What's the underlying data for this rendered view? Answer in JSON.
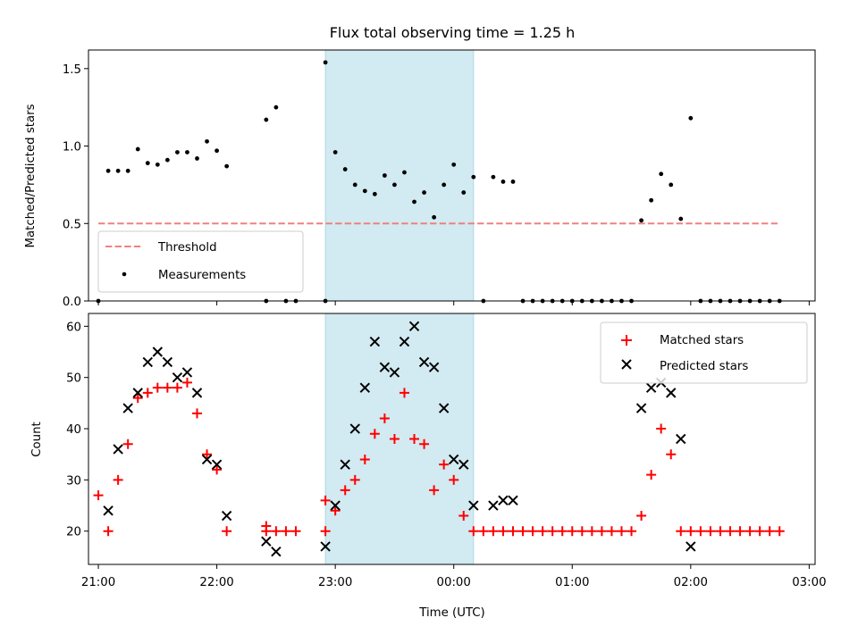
{
  "chart_data": [
    {
      "type": "scatter",
      "title": "Flux total observing time = 1.25 h",
      "xlabel": "",
      "ylabel": "Matched/Predicted stars",
      "xlim": [
        "20:55",
        "03:03"
      ],
      "ylim": [
        0,
        1.62
      ],
      "yticks": [
        0.0,
        0.5,
        1.0,
        1.5
      ],
      "ytick_labels": [
        "0.0",
        "0.5",
        "1.0",
        "1.5"
      ],
      "x_tick_labels": [
        "21:00",
        "22:00",
        "23:00",
        "00:00",
        "01:00",
        "02:00",
        "03:00"
      ],
      "x_tick_labels_visible": false,
      "shaded_region": {
        "from": "22:55",
        "to": "00:10",
        "color": "#add8e6"
      },
      "legend": {
        "position": "lower-left",
        "entries": [
          "Threshold",
          "Measurements"
        ]
      },
      "series": [
        {
          "name": "Threshold",
          "kind": "dashed-line",
          "color": "#f08080",
          "points": [
            [
              "21:00",
              0.5
            ],
            [
              "02:45",
              0.5
            ]
          ]
        },
        {
          "name": "Measurements",
          "kind": "dot",
          "color": "#000000",
          "points": [
            [
              "21:00",
              0.0
            ],
            [
              "21:05",
              0.84
            ],
            [
              "21:10",
              0.84
            ],
            [
              "21:15",
              0.84
            ],
            [
              "21:20",
              0.98
            ],
            [
              "21:25",
              0.89
            ],
            [
              "21:30",
              0.88
            ],
            [
              "21:35",
              0.91
            ],
            [
              "21:40",
              0.96
            ],
            [
              "21:45",
              0.96
            ],
            [
              "21:50",
              0.92
            ],
            [
              "21:55",
              1.03
            ],
            [
              "22:00",
              0.97
            ],
            [
              "22:05",
              0.87
            ],
            [
              "22:25",
              0.0
            ],
            [
              "22:25",
              1.17
            ],
            [
              "22:30",
              1.25
            ],
            [
              "22:35",
              0.0
            ],
            [
              "22:40",
              0.0
            ],
            [
              "22:55",
              0.0
            ],
            [
              "22:55",
              1.54
            ],
            [
              "23:00",
              0.96
            ],
            [
              "23:05",
              0.85
            ],
            [
              "23:10",
              0.75
            ],
            [
              "23:15",
              0.71
            ],
            [
              "23:20",
              0.69
            ],
            [
              "23:25",
              0.81
            ],
            [
              "23:30",
              0.75
            ],
            [
              "23:35",
              0.83
            ],
            [
              "23:40",
              0.64
            ],
            [
              "23:45",
              0.7
            ],
            [
              "23:50",
              0.54
            ],
            [
              "23:55",
              0.75
            ],
            [
              "00:00",
              0.88
            ],
            [
              "00:05",
              0.7
            ],
            [
              "00:10",
              0.8
            ],
            [
              "00:15",
              0.0
            ],
            [
              "00:20",
              0.8
            ],
            [
              "00:25",
              0.77
            ],
            [
              "00:30",
              0.77
            ],
            [
              "00:35",
              0.0
            ],
            [
              "00:40",
              0.0
            ],
            [
              "00:45",
              0.0
            ],
            [
              "00:50",
              0.0
            ],
            [
              "00:55",
              0.0
            ],
            [
              "01:00",
              0.0
            ],
            [
              "01:05",
              0.0
            ],
            [
              "01:10",
              0.0
            ],
            [
              "01:15",
              0.0
            ],
            [
              "01:20",
              0.0
            ],
            [
              "01:25",
              0.0
            ],
            [
              "01:30",
              0.0
            ],
            [
              "01:35",
              0.52
            ],
            [
              "01:40",
              0.65
            ],
            [
              "01:45",
              0.82
            ],
            [
              "01:50",
              0.75
            ],
            [
              "01:55",
              0.53
            ],
            [
              "02:00",
              1.18
            ],
            [
              "02:05",
              0.0
            ],
            [
              "02:10",
              0.0
            ],
            [
              "02:15",
              0.0
            ],
            [
              "02:20",
              0.0
            ],
            [
              "02:25",
              0.0
            ],
            [
              "02:30",
              0.0
            ],
            [
              "02:35",
              0.0
            ],
            [
              "02:40",
              0.0
            ],
            [
              "02:45",
              0.0
            ]
          ]
        }
      ]
    },
    {
      "type": "scatter",
      "title": "",
      "xlabel": "Time (UTC)",
      "ylabel": "Count",
      "xlim": [
        "20:55",
        "03:03"
      ],
      "ylim": [
        13.5,
        62.5
      ],
      "yticks": [
        20,
        30,
        40,
        50,
        60
      ],
      "ytick_labels": [
        "20",
        "30",
        "40",
        "50",
        "60"
      ],
      "x_tick_labels": [
        "21:00",
        "22:00",
        "23:00",
        "00:00",
        "01:00",
        "02:00",
        "03:00"
      ],
      "x_tick_labels_visible": true,
      "shaded_region": {
        "from": "22:55",
        "to": "00:10",
        "color": "#add8e6"
      },
      "legend": {
        "position": "top-right",
        "entries": [
          "Matched stars",
          "Predicted stars"
        ]
      },
      "series": [
        {
          "name": "Matched stars",
          "kind": "plus",
          "color": "#ff0000",
          "points": [
            [
              "21:00",
              27
            ],
            [
              "21:05",
              20
            ],
            [
              "21:10",
              30
            ],
            [
              "21:15",
              37
            ],
            [
              "21:20",
              46
            ],
            [
              "21:25",
              47
            ],
            [
              "21:30",
              48
            ],
            [
              "21:35",
              48
            ],
            [
              "21:40",
              48
            ],
            [
              "21:45",
              49
            ],
            [
              "21:50",
              43
            ],
            [
              "21:55",
              35
            ],
            [
              "22:00",
              32
            ],
            [
              "22:05",
              20
            ],
            [
              "22:25",
              21
            ],
            [
              "22:25",
              20
            ],
            [
              "22:30",
              20
            ],
            [
              "22:35",
              20
            ],
            [
              "22:40",
              20
            ],
            [
              "22:55",
              20
            ],
            [
              "22:55",
              26
            ],
            [
              "23:00",
              24
            ],
            [
              "23:05",
              28
            ],
            [
              "23:10",
              30
            ],
            [
              "23:15",
              34
            ],
            [
              "23:20",
              39
            ],
            [
              "23:25",
              42
            ],
            [
              "23:30",
              38
            ],
            [
              "23:35",
              47
            ],
            [
              "23:40",
              38
            ],
            [
              "23:45",
              37
            ],
            [
              "23:50",
              28
            ],
            [
              "23:55",
              33
            ],
            [
              "00:00",
              30
            ],
            [
              "00:05",
              23
            ],
            [
              "00:10",
              20
            ],
            [
              "00:15",
              20
            ],
            [
              "00:20",
              20
            ],
            [
              "00:25",
              20
            ],
            [
              "00:30",
              20
            ],
            [
              "00:35",
              20
            ],
            [
              "00:40",
              20
            ],
            [
              "00:45",
              20
            ],
            [
              "00:50",
              20
            ],
            [
              "00:55",
              20
            ],
            [
              "01:00",
              20
            ],
            [
              "01:05",
              20
            ],
            [
              "01:10",
              20
            ],
            [
              "01:15",
              20
            ],
            [
              "01:20",
              20
            ],
            [
              "01:25",
              20
            ],
            [
              "01:30",
              20
            ],
            [
              "01:35",
              23
            ],
            [
              "01:40",
              31
            ],
            [
              "01:45",
              40
            ],
            [
              "01:50",
              35
            ],
            [
              "01:55",
              20
            ],
            [
              "02:00",
              20
            ],
            [
              "02:05",
              20
            ],
            [
              "02:10",
              20
            ],
            [
              "02:15",
              20
            ],
            [
              "02:20",
              20
            ],
            [
              "02:25",
              20
            ],
            [
              "02:30",
              20
            ],
            [
              "02:35",
              20
            ],
            [
              "02:40",
              20
            ],
            [
              "02:45",
              20
            ]
          ]
        },
        {
          "name": "Predicted stars",
          "kind": "x",
          "color": "#000000",
          "points": [
            [
              "21:05",
              24
            ],
            [
              "21:10",
              36
            ],
            [
              "21:15",
              44
            ],
            [
              "21:20",
              47
            ],
            [
              "21:25",
              53
            ],
            [
              "21:30",
              55
            ],
            [
              "21:35",
              53
            ],
            [
              "21:40",
              50
            ],
            [
              "21:45",
              51
            ],
            [
              "21:50",
              47
            ],
            [
              "21:55",
              34
            ],
            [
              "22:00",
              33
            ],
            [
              "22:05",
              23
            ],
            [
              "22:25",
              18
            ],
            [
              "22:30",
              16
            ],
            [
              "22:55",
              17
            ],
            [
              "23:00",
              25
            ],
            [
              "23:05",
              33
            ],
            [
              "23:10",
              40
            ],
            [
              "23:15",
              48
            ],
            [
              "23:20",
              57
            ],
            [
              "23:25",
              52
            ],
            [
              "23:30",
              51
            ],
            [
              "23:35",
              57
            ],
            [
              "23:40",
              60
            ],
            [
              "23:45",
              53
            ],
            [
              "23:50",
              52
            ],
            [
              "23:55",
              44
            ],
            [
              "00:00",
              34
            ],
            [
              "00:05",
              33
            ],
            [
              "00:10",
              25
            ],
            [
              "00:20",
              25
            ],
            [
              "00:25",
              26
            ],
            [
              "00:30",
              26
            ],
            [
              "01:35",
              44
            ],
            [
              "01:40",
              48
            ],
            [
              "01:45",
              49
            ],
            [
              "01:50",
              47
            ],
            [
              "01:55",
              38
            ],
            [
              "02:00",
              17
            ]
          ]
        }
      ]
    }
  ]
}
